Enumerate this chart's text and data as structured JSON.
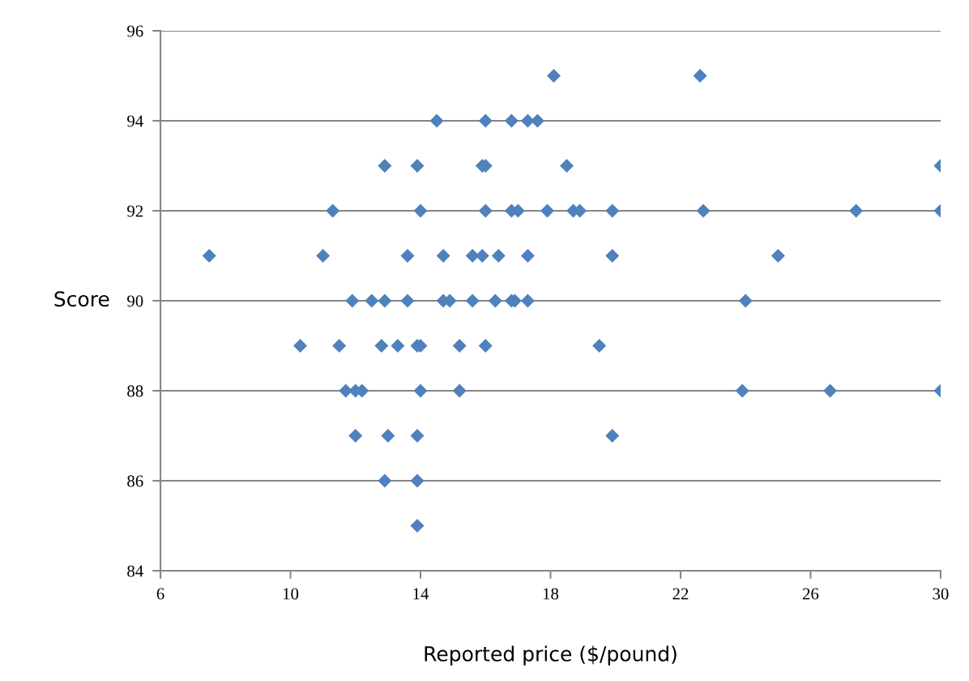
{
  "chart_data": {
    "type": "scatter",
    "xlabel": "Reported price ($/pound)",
    "ylabel": "Score",
    "xlim": [
      6,
      30
    ],
    "xticks": [
      6,
      10,
      14,
      18,
      22,
      26,
      30
    ],
    "ylim": [
      84,
      96
    ],
    "yticks": [
      84,
      86,
      88,
      90,
      92,
      94,
      96
    ],
    "grid": "y",
    "marker": "diamond",
    "series": [
      {
        "color": "#4f81bd",
        "x": [
          18.1,
          22.6,
          14.5,
          16.0,
          16.8,
          17.3,
          17.6,
          12.9,
          13.9,
          15.9,
          16.0,
          18.5,
          30.0,
          11.3,
          14.0,
          16.0,
          16.8,
          17.0,
          17.9,
          18.7,
          18.9,
          19.9,
          22.7,
          27.4,
          30.0,
          7.5,
          11.0,
          13.6,
          14.7,
          15.6,
          15.9,
          16.4,
          17.3,
          19.9,
          25.0,
          11.9,
          12.5,
          12.9,
          13.6,
          14.7,
          14.9,
          15.6,
          16.3,
          16.8,
          16.9,
          17.3,
          24.0,
          10.3,
          11.5,
          12.8,
          13.3,
          13.9,
          14.0,
          15.2,
          16.0,
          19.5,
          11.7,
          12.0,
          12.2,
          14.0,
          15.2,
          23.9,
          26.6,
          30.0,
          12.0,
          13.0,
          13.9,
          19.9,
          12.9,
          13.9,
          13.9
        ],
        "values": [
          95,
          95,
          94,
          94,
          94,
          94,
          94,
          93,
          93,
          93,
          93,
          93,
          93,
          92,
          92,
          92,
          92,
          92,
          92,
          92,
          92,
          92,
          92,
          92,
          92,
          91,
          91,
          91,
          91,
          91,
          91,
          91,
          91,
          91,
          91,
          90,
          90,
          90,
          90,
          90,
          90,
          90,
          90,
          90,
          90,
          90,
          90,
          89,
          89,
          89,
          89,
          89,
          89,
          89,
          89,
          89,
          88,
          88,
          88,
          88,
          88,
          88,
          88,
          88,
          87,
          87,
          87,
          87,
          86,
          86,
          85
        ]
      }
    ]
  }
}
